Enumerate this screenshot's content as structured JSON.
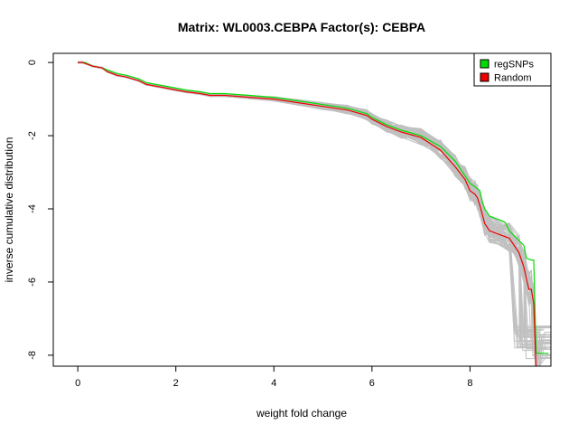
{
  "chart_data": {
    "type": "line",
    "title": "Matrix: WL0003.CEBPA Factor(s): CEBPA",
    "xlabel": "weight fold change",
    "ylabel": "inverse cumulative distribution",
    "xlim": [
      -0.5,
      9.65
    ],
    "ylim": [
      -8.3,
      0.25
    ],
    "x_ticks": [
      0,
      2,
      4,
      6,
      8
    ],
    "x_tick_labels": [
      "0",
      "2",
      "4",
      "6",
      "8"
    ],
    "y_ticks": [
      0,
      -2,
      -4,
      -6,
      -8
    ],
    "y_tick_labels": [
      "0",
      "-2",
      "-4",
      "-6",
      "-8"
    ],
    "grid": false,
    "legend_position": "top-right",
    "legend": [
      {
        "label": "regSNPs",
        "color": "#00dd00"
      },
      {
        "label": "Random",
        "color": "#ee0000"
      }
    ],
    "series": [
      {
        "name": "regSNPs",
        "color": "#00dd00",
        "x": [
          0,
          0.15,
          0.3,
          0.5,
          0.6,
          0.8,
          1.0,
          1.25,
          1.4,
          1.6,
          1.8,
          2.0,
          2.2,
          2.5,
          2.7,
          3.0,
          3.5,
          4.0,
          4.5,
          5.0,
          5.5,
          5.9,
          6.0,
          6.3,
          6.6,
          7.0,
          7.4,
          7.7,
          7.9,
          8.0,
          8.1,
          8.2,
          8.25,
          8.3,
          8.4,
          8.7,
          8.75,
          8.8,
          9.1,
          9.15,
          9.25,
          9.3,
          9.35,
          9.6
        ],
        "y": [
          0,
          0,
          -0.1,
          -0.15,
          -0.2,
          -0.3,
          -0.35,
          -0.45,
          -0.55,
          -0.6,
          -0.65,
          -0.7,
          -0.75,
          -0.8,
          -0.85,
          -0.85,
          -0.9,
          -0.95,
          -1.05,
          -1.15,
          -1.25,
          -1.4,
          -1.5,
          -1.7,
          -1.85,
          -2.0,
          -2.3,
          -2.7,
          -3.1,
          -3.3,
          -3.4,
          -3.5,
          -3.8,
          -4.0,
          -4.2,
          -4.35,
          -4.45,
          -4.6,
          -5.0,
          -5.35,
          -5.4,
          -5.4,
          -7.95,
          -7.95
        ]
      },
      {
        "name": "Random",
        "color": "#ee0000",
        "x": [
          0,
          0.1,
          0.3,
          0.5,
          0.6,
          0.8,
          1.0,
          1.25,
          1.4,
          1.6,
          1.8,
          2.0,
          2.2,
          2.5,
          2.7,
          3.0,
          3.5,
          4.0,
          4.5,
          5.0,
          5.5,
          5.9,
          6.0,
          6.3,
          6.6,
          7.0,
          7.4,
          7.7,
          7.9,
          8.0,
          8.1,
          8.15,
          8.2,
          8.3,
          8.4,
          8.8,
          9.0,
          9.1,
          9.2,
          9.25,
          9.3,
          9.35
        ],
        "y": [
          0,
          0,
          -0.1,
          -0.15,
          -0.25,
          -0.35,
          -0.4,
          -0.5,
          -0.6,
          -0.65,
          -0.7,
          -0.75,
          -0.8,
          -0.85,
          -0.9,
          -0.9,
          -0.95,
          -1.0,
          -1.1,
          -1.2,
          -1.3,
          -1.45,
          -1.55,
          -1.75,
          -1.9,
          -2.05,
          -2.4,
          -2.85,
          -3.2,
          -3.5,
          -3.6,
          -3.7,
          -3.9,
          -4.4,
          -4.6,
          -4.8,
          -5.2,
          -5.6,
          -6.2,
          -6.2,
          -6.6,
          -8.5
        ]
      }
    ],
    "background_series_color": "#c0c0c0",
    "background_series_count": 60
  }
}
